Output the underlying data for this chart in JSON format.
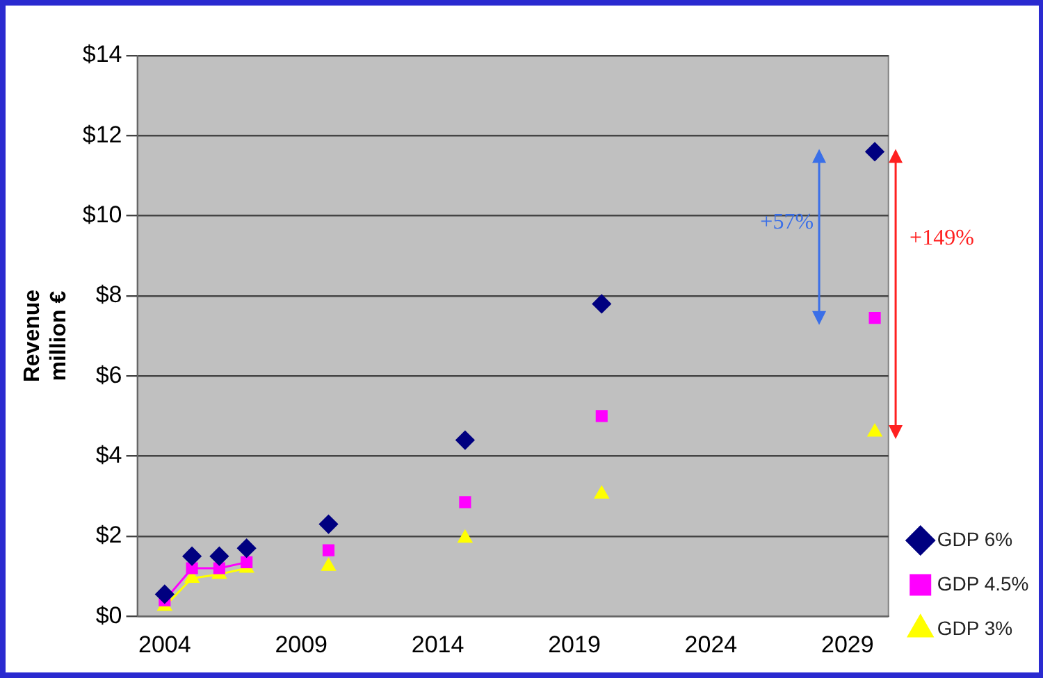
{
  "chart_data": {
    "type": "scatter",
    "ylabel": "Revenue\nmillion €",
    "x": [
      2004,
      2005,
      2006,
      2007,
      2008,
      2010,
      2012,
      2015,
      2017,
      2020,
      2025,
      2030
    ],
    "series": [
      {
        "name": "GDP 6%",
        "color": "#000080",
        "marker": "diamond",
        "values": [
          0.55,
          1.5,
          1.5,
          1.7,
          null,
          2.3,
          null,
          4.4,
          null,
          7.8,
          null,
          11.6
        ]
      },
      {
        "name": "GDP 4.5%",
        "type": "line",
        "color": "#ff00ff",
        "marker": "square",
        "values": [
          0.4,
          1.2,
          1.2,
          1.35,
          null,
          1.65,
          null,
          2.85,
          null,
          5.0,
          null,
          7.45
        ]
      },
      {
        "name": "GDP 3%",
        "type": "line",
        "color": "#ffff00",
        "marker": "triangle",
        "values": [
          0.25,
          0.95,
          1.05,
          1.2,
          null,
          1.25,
          null,
          1.95,
          null,
          3.05,
          null,
          4.6
        ]
      }
    ],
    "xlim": [
      2003,
      2030.5
    ],
    "xticks": [
      2004,
      2009,
      2014,
      2019,
      2024,
      2029
    ],
    "ylim": [
      0,
      14
    ],
    "yticks": [
      {
        "value": 0,
        "label": "$0"
      },
      {
        "value": 2,
        "label": "$2"
      },
      {
        "value": 4,
        "label": "$4"
      },
      {
        "value": 6,
        "label": "$6"
      },
      {
        "value": 8,
        "label": "$8"
      },
      {
        "value": 10,
        "label": "$10"
      },
      {
        "value": 12,
        "label": "$12"
      },
      {
        "value": 14,
        "label": "$14"
      }
    ],
    "grid": "y",
    "legend": "bottom right",
    "annotations": [
      "+57%",
      "+149%"
    ]
  }
}
